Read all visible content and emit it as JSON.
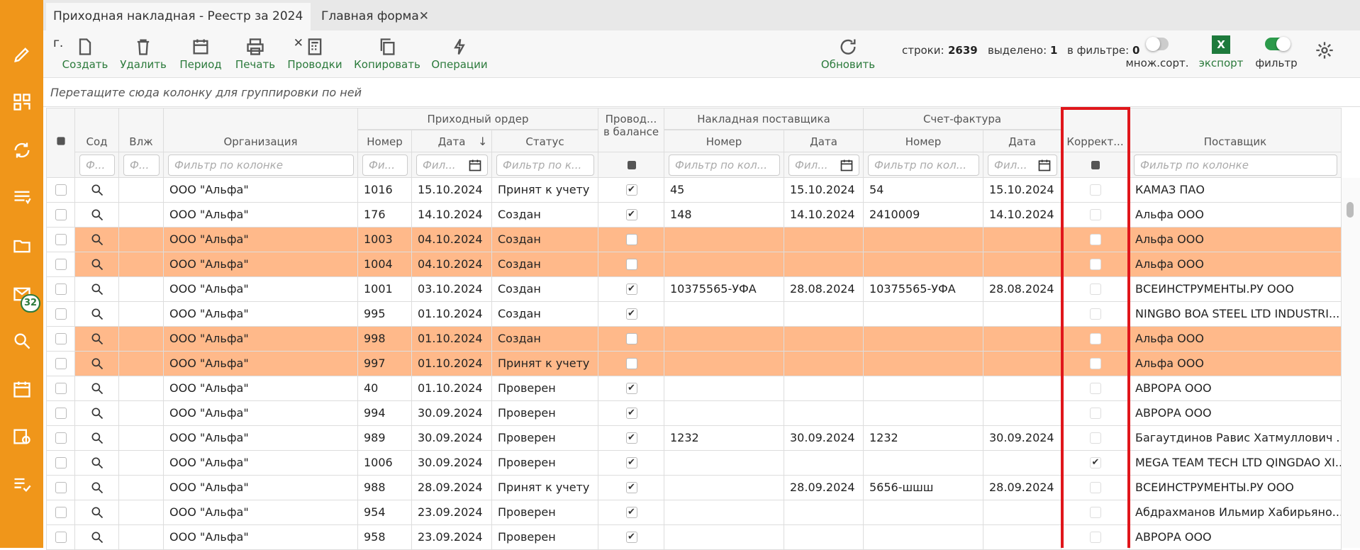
{
  "tabs": [
    "Приходная накладная - Реестр за 2024 г.",
    "Главная форма"
  ],
  "toolbar": [
    "Создать",
    "Удалить",
    "Период",
    "Печать",
    "Проводки",
    "Копировать",
    "Операции",
    "Обновить"
  ],
  "stats": [
    {
      "label": "строки:",
      "value": 2639
    },
    {
      "label": "выделено:",
      "value": 1
    },
    {
      "label": "в фильтре:",
      "value": 0
    }
  ],
  "switches": [
    {
      "label": "множ.сорт.",
      "on": false
    },
    {
      "label": "экспорт"
    },
    {
      "label": "фильтр",
      "on": true
    }
  ],
  "sidebar_badge": 32,
  "group_hint": "Перетащите сюда колонку для группировки по ней",
  "header_groups": [
    "Приходный ордер",
    "Накладная поставщика",
    "Счет-фактура"
  ],
  "columns": [
    {
      "title": "Сод",
      "filter": "Ф..."
    },
    {
      "title": "Влж",
      "filter": "Ф..."
    },
    {
      "title": "Организация",
      "filter": "Фильтр по колонке"
    },
    {
      "title": "Номер",
      "filter": "Фи..."
    },
    {
      "title": "Дата",
      "filter": "Фил..."
    },
    {
      "title": "Статус",
      "filter": "Фильтр по к..."
    },
    {
      "title": "Провод...\nв балансе"
    },
    {
      "title": "Номер",
      "filter": "Фильтр по кол..."
    },
    {
      "title": "Дата",
      "filter": "Фил..."
    },
    {
      "title": "Номер",
      "filter": "Фильтр по кол..."
    },
    {
      "title": "Дата",
      "filter": "Фил..."
    },
    {
      "title": "Коррект..."
    },
    {
      "title": "Поставщик",
      "filter": "Фильтр по колонке"
    }
  ],
  "rows": [
    {
      "org": "ООО \"Альфа\"",
      "num": "1016",
      "date": "15.10.2024",
      "status": "Принят к учету",
      "posted": true,
      "inv_num": "45",
      "inv_date": "15.10.2024",
      "sf_num": "54",
      "sf_date": "15.10.2024",
      "corr": false,
      "supplier": "КАМАЗ ПАО",
      "highlight": false
    },
    {
      "org": "ООО \"Альфа\"",
      "num": "176",
      "date": "14.10.2024",
      "status": "Создан",
      "posted": true,
      "inv_num": "148",
      "inv_date": "14.10.2024",
      "sf_num": "2410009",
      "sf_date": "14.10.2024",
      "corr": false,
      "supplier": "Альфа ООО",
      "highlight": false
    },
    {
      "org": "ООО \"Альфа\"",
      "num": "1003",
      "date": "04.10.2024",
      "status": "Создан",
      "posted": false,
      "inv_num": null,
      "inv_date": null,
      "sf_num": null,
      "sf_date": null,
      "corr": false,
      "supplier": "Альфа ООО",
      "highlight": true
    },
    {
      "org": "ООО \"Альфа\"",
      "num": "1004",
      "date": "04.10.2024",
      "status": "Создан",
      "posted": false,
      "inv_num": null,
      "inv_date": null,
      "sf_num": null,
      "sf_date": null,
      "corr": false,
      "supplier": "Альфа ООО",
      "highlight": true
    },
    {
      "org": "ООО \"Альфа\"",
      "num": "1001",
      "date": "03.10.2024",
      "status": "Создан",
      "posted": true,
      "inv_num": "10375565-УФА",
      "inv_date": "28.08.2024",
      "sf_num": "10375565-УФА",
      "sf_date": "28.08.2024",
      "corr": false,
      "supplier": "ВСЕИНСТРУМЕНТЫ.РУ ООО",
      "highlight": false
    },
    {
      "org": "ООО \"Альфа\"",
      "num": "995",
      "date": "01.10.2024",
      "status": "Создан",
      "posted": true,
      "inv_num": null,
      "inv_date": null,
      "sf_num": null,
      "sf_date": null,
      "corr": false,
      "supplier": "NINGBO BOA STEEL LTD INDUSTRI...",
      "highlight": false
    },
    {
      "org": "ООО \"Альфа\"",
      "num": "998",
      "date": "01.10.2024",
      "status": "Создан",
      "posted": false,
      "inv_num": null,
      "inv_date": null,
      "sf_num": null,
      "sf_date": null,
      "corr": false,
      "supplier": "Альфа ООО",
      "highlight": true
    },
    {
      "org": "ООО \"Альфа\"",
      "num": "997",
      "date": "01.10.2024",
      "status": "Принят к учету",
      "posted": false,
      "inv_num": null,
      "inv_date": null,
      "sf_num": null,
      "sf_date": null,
      "corr": false,
      "supplier": "Альфа ООО",
      "highlight": true
    },
    {
      "org": "ООО \"Альфа\"",
      "num": "40",
      "date": "01.10.2024",
      "status": "Проверен",
      "posted": true,
      "inv_num": null,
      "inv_date": null,
      "sf_num": null,
      "sf_date": null,
      "corr": false,
      "supplier": "АВРОРА ООО",
      "highlight": false
    },
    {
      "org": "ООО \"Альфа\"",
      "num": "994",
      "date": "30.09.2024",
      "status": "Проверен",
      "posted": true,
      "inv_num": null,
      "inv_date": null,
      "sf_num": null,
      "sf_date": null,
      "corr": false,
      "supplier": "АВРОРА ООО",
      "highlight": false
    },
    {
      "org": "ООО \"Альфа\"",
      "num": "989",
      "date": "30.09.2024",
      "status": "Проверен",
      "posted": true,
      "inv_num": "1232",
      "inv_date": "30.09.2024",
      "sf_num": "1232",
      "sf_date": "30.09.2024",
      "corr": false,
      "supplier": "Багаутдинов Равис Хатмуллович ...",
      "highlight": false
    },
    {
      "org": "ООО \"Альфа\"",
      "num": "1006",
      "date": "30.09.2024",
      "status": "Проверен",
      "posted": true,
      "inv_num": null,
      "inv_date": null,
      "sf_num": null,
      "sf_date": null,
      "corr": true,
      "supplier": "MEGA TEAM TECH LTD QINGDAO XI...",
      "highlight": false
    },
    {
      "org": "ООО \"Альфа\"",
      "num": "988",
      "date": "28.09.2024",
      "status": "Принят к учету",
      "posted": true,
      "inv_num": null,
      "inv_date": "28.09.2024",
      "sf_num": "5656-шшш",
      "sf_date": "28.09.2024",
      "corr": false,
      "supplier": "ВСЕИНСТРУМЕНТЫ.РУ ООО",
      "highlight": false
    },
    {
      "org": "ООО \"Альфа\"",
      "num": "954",
      "date": "23.09.2024",
      "status": "Проверен",
      "posted": true,
      "inv_num": null,
      "inv_date": null,
      "sf_num": null,
      "sf_date": null,
      "corr": false,
      "supplier": "Абдрахманов Ильмир Хабирьяно...",
      "highlight": false
    },
    {
      "org": "ООО \"Альфа\"",
      "num": "958",
      "date": "23.09.2024",
      "status": "Проверен",
      "posted": true,
      "inv_num": null,
      "inv_date": null,
      "sf_num": null,
      "sf_date": null,
      "corr": false,
      "supplier": "АВРОРА ООО",
      "highlight": false
    }
  ]
}
